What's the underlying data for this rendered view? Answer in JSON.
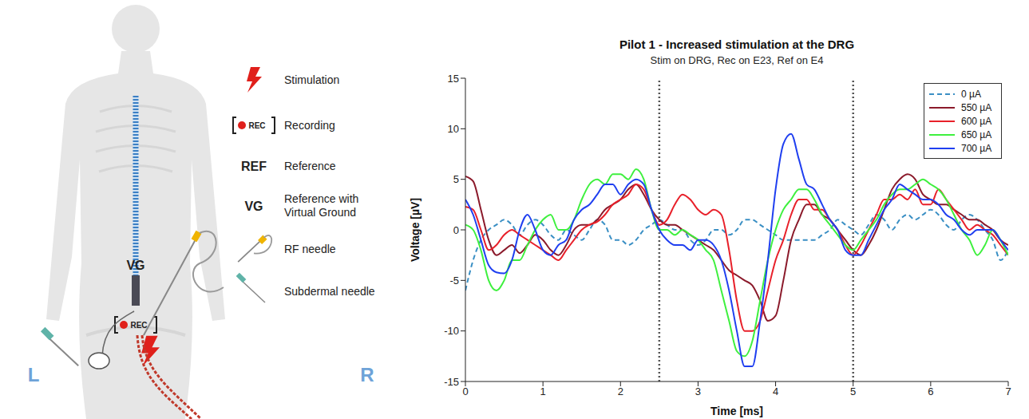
{
  "diagram": {
    "legend": [
      {
        "label": "Stimulation"
      },
      {
        "symbol": "REC",
        "label": "Recording"
      },
      {
        "symbol": "REF",
        "label": "Reference"
      },
      {
        "symbol": "VG",
        "label": "Reference with Virtual Ground"
      },
      {
        "label": "RF needle"
      },
      {
        "label": "Subdermal needle"
      }
    ],
    "sides": [
      "L",
      "R"
    ]
  },
  "chart_data": {
    "type": "line",
    "title": "Pilot 1 - Increased stimulation at the DRG",
    "subtitle": "Stim on DRG, Rec on E23, Ref on E4",
    "x_label": "Time [ms]",
    "y_label": "Voltage [µV]",
    "xlim": [
      0,
      7
    ],
    "xticks": [
      0,
      1,
      2,
      3,
      4,
      5,
      6,
      7
    ],
    "ylim": [
      -15,
      15
    ],
    "yticks": [
      -15,
      -10,
      -5,
      0,
      5,
      10,
      15
    ],
    "grid": false,
    "legend": "upper right",
    "vlines": [
      2.5,
      5
    ],
    "x": [
      0,
      0.1,
      0.2,
      0.3,
      0.4,
      0.5,
      0.6,
      0.7,
      0.8,
      0.9,
      1,
      1.1,
      1.2,
      1.3,
      1.4,
      1.5,
      1.6,
      1.7,
      1.8,
      1.9,
      2,
      2.1,
      2.2,
      2.3,
      2.4,
      2.5,
      2.6,
      2.7,
      2.8,
      2.9,
      3,
      3.1,
      3.2,
      3.3,
      3.4,
      3.5,
      3.6,
      3.7,
      3.8,
      3.9,
      4,
      4.1,
      4.2,
      4.3,
      4.4,
      4.5,
      4.6,
      4.7,
      4.8,
      4.9,
      5,
      5.1,
      5.2,
      5.3,
      5.4,
      5.5,
      5.6,
      5.7,
      5.8,
      5.9,
      6,
      6.1,
      6.2,
      6.3,
      6.4,
      6.5,
      6.6,
      6.7,
      6.8,
      6.9,
      7
    ],
    "series": [
      {
        "name": "0 µA",
        "color": "#3a8fc4",
        "line_style": "dashed",
        "values": [
          -6,
          -3,
          -1,
          0,
          0.5,
          1,
          0.5,
          -0.5,
          0.5,
          1,
          0.5,
          -0.5,
          -1,
          0,
          -0.5,
          -1,
          0,
          1,
          0.5,
          -1,
          -1,
          -1.5,
          -1,
          0,
          0.5,
          1,
          0.5,
          0,
          0,
          -1,
          -1.5,
          -1,
          0,
          0,
          -0.5,
          0,
          1,
          1,
          0.5,
          0,
          -0.5,
          -1,
          -1,
          -1,
          -1,
          -1,
          -0.5,
          0,
          1,
          0.5,
          0,
          -0.5,
          0.5,
          1.5,
          1,
          0,
          1,
          1.5,
          1,
          1.5,
          2,
          1.5,
          0.5,
          0,
          1,
          1.5,
          1,
          0,
          -1,
          -3,
          -2
        ]
      },
      {
        "name": "550 µA",
        "color": "#8b1a2b",
        "line_style": "solid",
        "values": [
          5.3,
          4.8,
          2,
          -1,
          -2.5,
          -2,
          -1.5,
          -2.3,
          -1.5,
          -0.5,
          -1,
          -2,
          -2.5,
          -1.5,
          0,
          0.5,
          0.5,
          1,
          2,
          2.5,
          3,
          4,
          4.5,
          3.5,
          2,
          1,
          0.5,
          0.5,
          0,
          -0.5,
          -1,
          -1.5,
          -2,
          -3,
          -4,
          -4.5,
          -5,
          -5.5,
          -7,
          -9,
          -8.5,
          -5,
          -1,
          1,
          2.5,
          2.5,
          1.5,
          1,
          0,
          -1,
          -2,
          -2.5,
          -1.5,
          0,
          2,
          4,
          5,
          5.5,
          5,
          3.5,
          3,
          2.5,
          2.5,
          2,
          1.5,
          1,
          1,
          0.5,
          0,
          -1,
          -1.5
        ]
      },
      {
        "name": "600 µA",
        "color": "#e8202a",
        "line_style": "solid",
        "values": [
          2.3,
          2,
          0,
          -2,
          -1.5,
          -0.5,
          0,
          -0.5,
          -1,
          -1.5,
          -2,
          -2.5,
          -3,
          -2,
          -1,
          0,
          0.5,
          0.8,
          1.5,
          2.5,
          3,
          3.5,
          4.5,
          4,
          2,
          0.5,
          1,
          2.5,
          3.5,
          3,
          2,
          1.5,
          2,
          1.5,
          -2,
          -7,
          -10,
          -10,
          -9,
          -6,
          -3,
          -1,
          1.5,
          3,
          3,
          2,
          2,
          1,
          0,
          -1.5,
          -2.5,
          -1.5,
          0,
          1.5,
          3,
          3,
          3.5,
          3,
          4,
          2.5,
          2.5,
          4,
          3,
          2,
          1,
          0,
          0.5,
          0,
          -0.5,
          -1.5,
          -2.5
        ]
      },
      {
        "name": "650 µA",
        "color": "#3ef03e",
        "line_style": "solid",
        "values": [
          0.5,
          0,
          -2,
          -5,
          -6,
          -5,
          -3,
          -3,
          -1.5,
          0,
          1,
          1.5,
          0,
          0,
          1,
          3,
          4.5,
          5,
          4.5,
          5.5,
          5.5,
          5,
          6,
          5,
          2,
          0,
          0,
          -0.5,
          0,
          -0.5,
          -1,
          -2,
          -3,
          -6,
          -9,
          -12,
          -12.5,
          -11,
          -7,
          -3,
          0,
          2,
          3,
          4,
          4,
          3,
          1.5,
          0.5,
          -0.5,
          -1.5,
          -2,
          -1,
          0,
          1,
          2.5,
          3.5,
          4,
          4,
          4.5,
          5,
          4.5,
          4,
          3,
          1.5,
          0,
          -1,
          -2.5,
          -1.5,
          0,
          -1,
          -2.5
        ]
      },
      {
        "name": "700 µA",
        "color": "#1f3ff0",
        "line_style": "solid",
        "values": [
          3,
          1.5,
          -1,
          -3.5,
          -4.2,
          -4.3,
          -3,
          0,
          1.5,
          0,
          -2,
          -2.5,
          -1.5,
          -1,
          1,
          2,
          2.5,
          3.5,
          4.5,
          4.5,
          3.5,
          4.5,
          5,
          4.5,
          2,
          0,
          -1,
          -1.5,
          -1.5,
          -2,
          -1,
          -1,
          -1.5,
          -3,
          -6,
          -10,
          -13.5,
          -13.5,
          -9,
          -3,
          4,
          8.5,
          9.5,
          7,
          4.5,
          4,
          2.5,
          1,
          0,
          -2,
          -2.5,
          -2.5,
          -1,
          0.5,
          2,
          3,
          4.5,
          4,
          3.5,
          3,
          3,
          2.5,
          1.5,
          1,
          0,
          -0.5,
          0,
          0,
          0,
          -1,
          -2
        ]
      }
    ]
  }
}
